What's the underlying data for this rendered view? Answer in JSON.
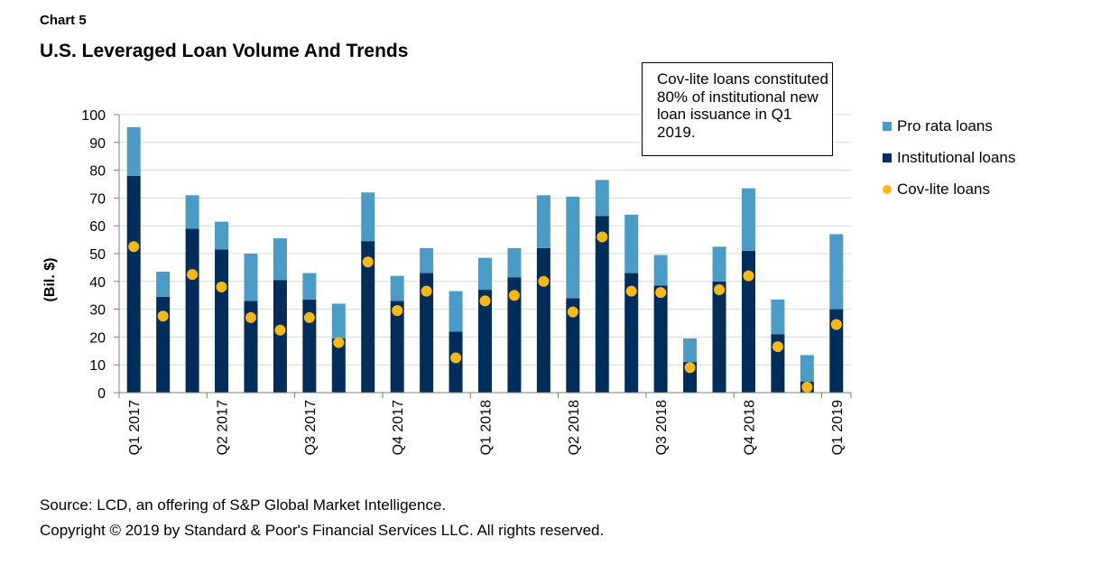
{
  "header": {
    "chart_label": "Chart 5",
    "title": "U.S. Leveraged Loan Volume And Trends"
  },
  "annotation": "Cov-lite loans constituted 80% of institutional new loan issuance in Q1 2019.",
  "footer": {
    "source": "Source: LCD, an offering of S&P Global Market Intelligence.",
    "copyright": "Copyright © 2019 by Standard & Poor's Financial Services LLC. All rights reserved."
  },
  "colors": {
    "pro_rata": "#4a9cc7",
    "institutional": "#002d5a",
    "cov_lite": "#f9b915",
    "grid": "#d9d9d9",
    "axis": "#7f7f7f"
  },
  "chart_data": {
    "type": "bar",
    "stacked": true,
    "title": "U.S. Leveraged Loan Volume And Trends",
    "ylabel": "(Bil. $)",
    "ylim": [
      0,
      100
    ],
    "yticks": [
      0,
      10,
      20,
      30,
      40,
      50,
      60,
      70,
      80,
      90,
      100
    ],
    "grid": true,
    "legend_position": "right",
    "x_tick_labels": [
      {
        "index": 0,
        "label": "Q1 2017"
      },
      {
        "index": 3,
        "label": "Q2 2017"
      },
      {
        "index": 6,
        "label": "Q3 2017"
      },
      {
        "index": 9,
        "label": "Q4 2017"
      },
      {
        "index": 12,
        "label": "Q1 2018"
      },
      {
        "index": 15,
        "label": "Q2 2018"
      },
      {
        "index": 18,
        "label": "Q3 2018"
      },
      {
        "index": 21,
        "label": "Q4 2018"
      },
      {
        "index": 24,
        "label": "Q1 2019"
      }
    ],
    "series": [
      {
        "name": "Institutional loans",
        "type": "bar",
        "values": [
          78,
          34.5,
          59,
          51.5,
          33,
          40.5,
          33.5,
          19.5,
          54.5,
          33,
          43,
          22,
          37,
          41.5,
          52,
          34,
          63.5,
          43,
          38.5,
          11,
          40,
          51,
          21,
          4,
          30
        ]
      },
      {
        "name": "Pro rata loans",
        "type": "bar",
        "values": [
          17.5,
          9,
          12,
          10,
          17,
          15,
          9.5,
          12.5,
          17.5,
          9,
          9,
          14.5,
          11.5,
          10.5,
          19,
          36.5,
          13,
          21,
          11,
          8.5,
          12.5,
          22.5,
          12.5,
          9.5,
          27
        ]
      },
      {
        "name": "Cov-lite loans",
        "type": "scatter",
        "values": [
          52.5,
          27.5,
          42.5,
          38,
          27,
          22.5,
          27,
          18,
          47,
          29.5,
          36.5,
          12.5,
          33,
          35,
          40,
          29,
          56,
          36.5,
          36,
          9,
          37,
          42,
          16.5,
          2,
          24.5
        ]
      }
    ]
  }
}
